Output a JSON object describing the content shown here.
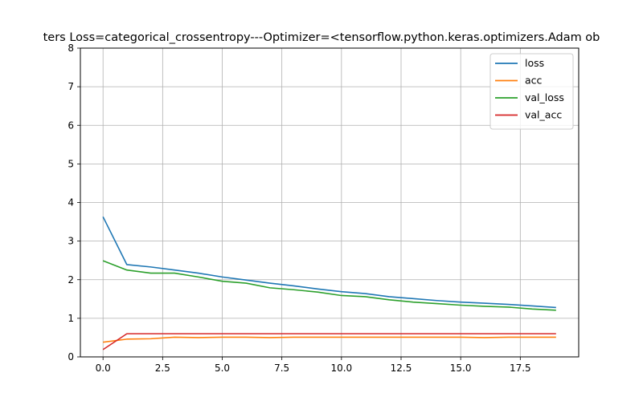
{
  "chart_data": {
    "type": "line",
    "title": "ters  Loss=categorical_crossentropy---Optimizer=<tensorflow.python.keras.optimizers.Adam ob",
    "xlabel": "",
    "ylabel": "",
    "xlim": [
      -0.95,
      19.95
    ],
    "ylim": [
      0,
      8
    ],
    "grid": true,
    "legend_position": "top-right",
    "x": [
      0,
      1,
      2,
      3,
      4,
      5,
      6,
      7,
      8,
      9,
      10,
      11,
      12,
      13,
      14,
      15,
      16,
      17,
      18,
      19
    ],
    "x_ticks": [
      0.0,
      2.5,
      5.0,
      7.5,
      10.0,
      12.5,
      15.0,
      17.5
    ],
    "x_tick_labels": [
      "0.0",
      "2.5",
      "5.0",
      "7.5",
      "10.0",
      "12.5",
      "15.0",
      "17.5"
    ],
    "y_ticks": [
      0,
      1,
      2,
      3,
      4,
      5,
      6,
      7,
      8
    ],
    "y_tick_labels": [
      "0",
      "1",
      "2",
      "3",
      "4",
      "5",
      "6",
      "7",
      "8"
    ],
    "series": [
      {
        "name": "loss",
        "color": "#1f77b4",
        "values": [
          3.63,
          2.39,
          2.33,
          2.25,
          2.17,
          2.07,
          1.99,
          1.91,
          1.84,
          1.76,
          1.69,
          1.64,
          1.56,
          1.51,
          1.46,
          1.42,
          1.39,
          1.36,
          1.32,
          1.28
        ]
      },
      {
        "name": "acc",
        "color": "#ff7f0e",
        "values": [
          0.38,
          0.46,
          0.47,
          0.51,
          0.5,
          0.51,
          0.51,
          0.5,
          0.51,
          0.51,
          0.51,
          0.51,
          0.51,
          0.51,
          0.51,
          0.51,
          0.5,
          0.51,
          0.51,
          0.51
        ]
      },
      {
        "name": "val_loss",
        "color": "#2ca02c",
        "values": [
          2.49,
          2.25,
          2.17,
          2.17,
          2.07,
          1.96,
          1.91,
          1.79,
          1.74,
          1.68,
          1.59,
          1.56,
          1.48,
          1.42,
          1.38,
          1.34,
          1.31,
          1.29,
          1.24,
          1.21
        ]
      },
      {
        "name": "val_acc",
        "color": "#d62728",
        "values": [
          0.19,
          0.6,
          0.6,
          0.6,
          0.6,
          0.6,
          0.6,
          0.6,
          0.6,
          0.6,
          0.6,
          0.6,
          0.6,
          0.6,
          0.6,
          0.6,
          0.6,
          0.6,
          0.6,
          0.6
        ]
      }
    ]
  }
}
